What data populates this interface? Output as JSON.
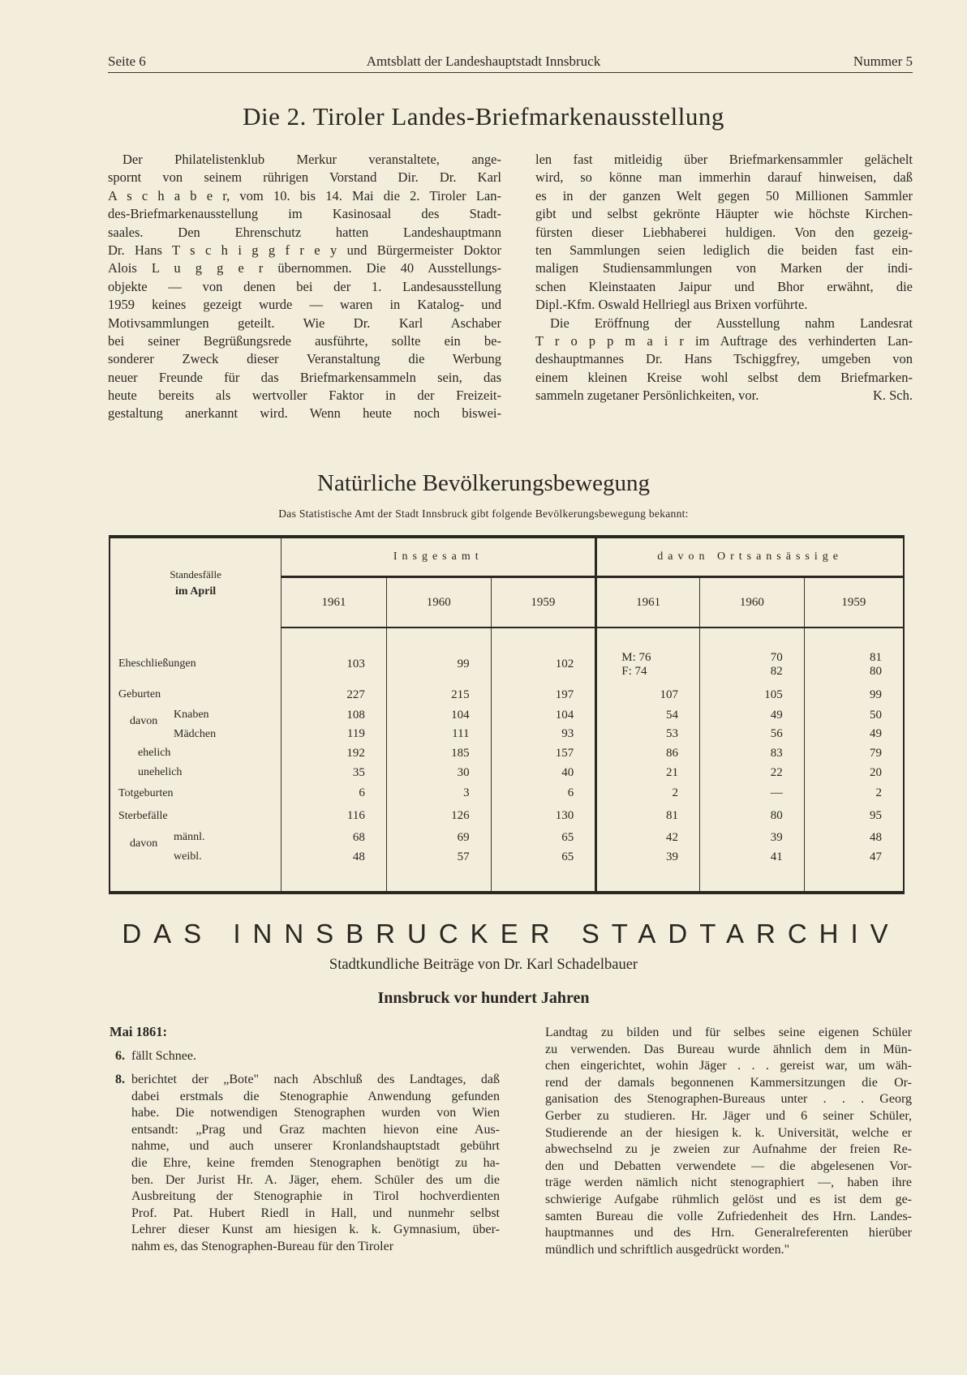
{
  "header": {
    "page": "Seite 6",
    "publication": "Amtsblatt der Landeshauptstadt Innsbruck",
    "issue": "Nummer 5"
  },
  "article1": {
    "title": "Die 2. Tiroler Landes-Briefmarkenausstellung",
    "left_lines": [
      "Der Philatelistenklub Merkur veranstaltete, ange-",
      "spornt von seinem rührigen Vorstand Dir. Dr. Karl",
      "A s c h a b e r, vom 10. bis 14. Mai die 2. Tiroler Lan-",
      "des-Briefmarkenausstellung im Kasinosaal des Stadt-",
      "saales. Den Ehrenschutz hatten Landeshauptmann",
      "Dr. Hans T s c h i g g f r e y und Bürgermeister Doktor",
      "Alois L u g g e r übernommen. Die 40 Ausstellungs-",
      "objekte — von denen bei der 1. Landesausstellung",
      "1959 keines gezeigt wurde — waren in Katalog- und",
      "Motivsammlungen geteilt. Wie Dr. Karl Aschaber",
      "bei seiner Begrüßungsrede ausführte, sollte ein be-",
      "sonderer Zweck dieser Veranstaltung die Werbung",
      "neuer Freunde für das Briefmarkensammeln sein, das",
      "heute bereits als wertvoller Faktor in der Freizeit-",
      "gestaltung anerkannt wird. Wenn heute noch biswei-"
    ],
    "right_lines": [
      "len fast mitleidig über Briefmarkensammler gelächelt",
      "wird, so könne man immerhin darauf hinweisen, daß",
      "es in der ganzen Welt gegen 50 Millionen Sammler",
      "gibt und selbst gekrönte Häupter wie höchste Kirchen-",
      "fürsten dieser Liebhaberei huldigen. Von den gezeig-",
      "ten Sammlungen seien lediglich die beiden fast ein-",
      "maligen Studiensammlungen von Marken der indi-",
      "schen Kleinstaaten Jaipur und Bhor erwähnt, die",
      "Dipl.-Kfm. Oswald Hellriegl aus Brixen vorführte.",
      "Die Eröffnung der Ausstellung nahm Landesrat",
      "T r o p p m a i r im Auftrage des verhinderten Lan-",
      "deshauptmannes Dr. Hans Tschiggfrey, umgeben von",
      "einem kleinen Kreise wohl selbst dem Briefmarken-",
      "sammeln zugetaner Persönlichkeiten, vor."
    ],
    "signature": "K. Sch."
  },
  "article2": {
    "title": "Natürliche Bevölkerungsbewegung",
    "subtitle": "Das Statistische Amt der Stadt Innsbruck gibt folgende Bevölkerungsbewegung bekannt:",
    "table": {
      "label_header_line1": "Standesfälle",
      "label_header_line2": "im April",
      "group_total": "Insgesamt",
      "group_local": "davon Ortsansässige",
      "years": [
        "1961",
        "1960",
        "1959",
        "1961",
        "1960",
        "1959"
      ],
      "rows": [
        {
          "label": "Eheschließungen",
          "level": 0,
          "values": [
            "103",
            "99",
            "102",
            "M: 76\nF: 74",
            "70\n82",
            "81\n80"
          ]
        },
        {
          "label": "Geburten",
          "level": 0,
          "values": [
            "227",
            "215",
            "197",
            "107",
            "105",
            "99"
          ],
          "bold_index": 3
        },
        {
          "label": "Knaben",
          "level": 2,
          "group": "davon",
          "values": [
            "108",
            "104",
            "104",
            "54",
            "49",
            "50"
          ]
        },
        {
          "label": "Mädchen",
          "level": 2,
          "values": [
            "119",
            "111",
            "93",
            "53",
            "56",
            "49"
          ]
        },
        {
          "label": "ehelich",
          "level": 1,
          "values": [
            "192",
            "185",
            "157",
            "86",
            "83",
            "79"
          ]
        },
        {
          "label": "unehelich",
          "level": 1,
          "values": [
            "35",
            "30",
            "40",
            "21",
            "22",
            "20"
          ]
        },
        {
          "label": "Totgeburten",
          "level": 0,
          "values": [
            "6",
            "3",
            "6",
            "2",
            "—",
            "2"
          ]
        },
        {
          "label": "Sterbefälle",
          "level": 0,
          "values": [
            "116",
            "126",
            "130",
            "81",
            "80",
            "95"
          ],
          "bold_index": 3
        },
        {
          "label": "männl.",
          "level": 2,
          "group": "davon",
          "values": [
            "68",
            "69",
            "65",
            "42",
            "39",
            "48"
          ]
        },
        {
          "label": "weibl.",
          "level": 2,
          "values": [
            "48",
            "57",
            "65",
            "39",
            "41",
            "47"
          ]
        }
      ]
    }
  },
  "article3": {
    "title": "DAS INNSBRUCKER STADTARCHIV",
    "subtitle": "Stadtkundliche Beiträge von Dr. Karl Schadelbauer",
    "section": "Innsbruck vor hundert Jahren",
    "date_heading": "Mai 1861:",
    "item6_num": "6.",
    "item6_text": "fällt Schnee.",
    "item8_num": "8.",
    "left_lines": [
      "berichtet der „Bote\" nach Abschluß des Landtages, daß",
      "dabei erstmals die Stenographie Anwendung gefunden",
      "habe. Die notwendigen Stenographen wurden von Wien",
      "entsandt: „Prag und Graz machten hievon eine Aus-",
      "nahme, und auch unserer Kronlandshauptstadt gebührt",
      "die Ehre, keine fremden Stenographen benötigt zu ha-",
      "ben. Der Jurist Hr. A. Jäger, ehem. Schüler des um die",
      "Ausbreitung der Stenographie in Tirol hochverdienten",
      "Prof. Pat. Hubert Riedl in Hall, und nunmehr selbst",
      "Lehrer dieser Kunst am hiesigen k. k. Gymnasium, über-",
      "nahm es, das Stenographen-Bureau für den Tiroler"
    ],
    "right_lines": [
      "Landtag zu bilden und für selbes seine eigenen Schüler",
      "zu verwenden. Das Bureau wurde ähnlich dem in Mün-",
      "chen eingerichtet, wohin Jäger . . . gereist war, um wäh-",
      "rend der damals begonnenen Kammersitzungen die Or-",
      "ganisation des Stenographen-Bureaus unter . . . Georg",
      "Gerber zu studieren. Hr. Jäger und 6 seiner Schüler,",
      "Studierende an der hiesigen k. k. Universität, welche er",
      "abwechselnd zu je zweien zur Aufnahme der freien Re-",
      "den und Debatten verwendete — die abgelesenen Vor-",
      "träge werden nämlich nicht stenographiert —, haben ihre",
      "schwierige Aufgabe rühmlich gelöst und es ist dem ge-",
      "samten Bureau die volle Zufriedenheit des Hrn. Landes-",
      "hauptmannes und des Hrn. Generalreferenten hierüber",
      "mündlich und schriftlich ausgedrückt worden.\""
    ]
  }
}
